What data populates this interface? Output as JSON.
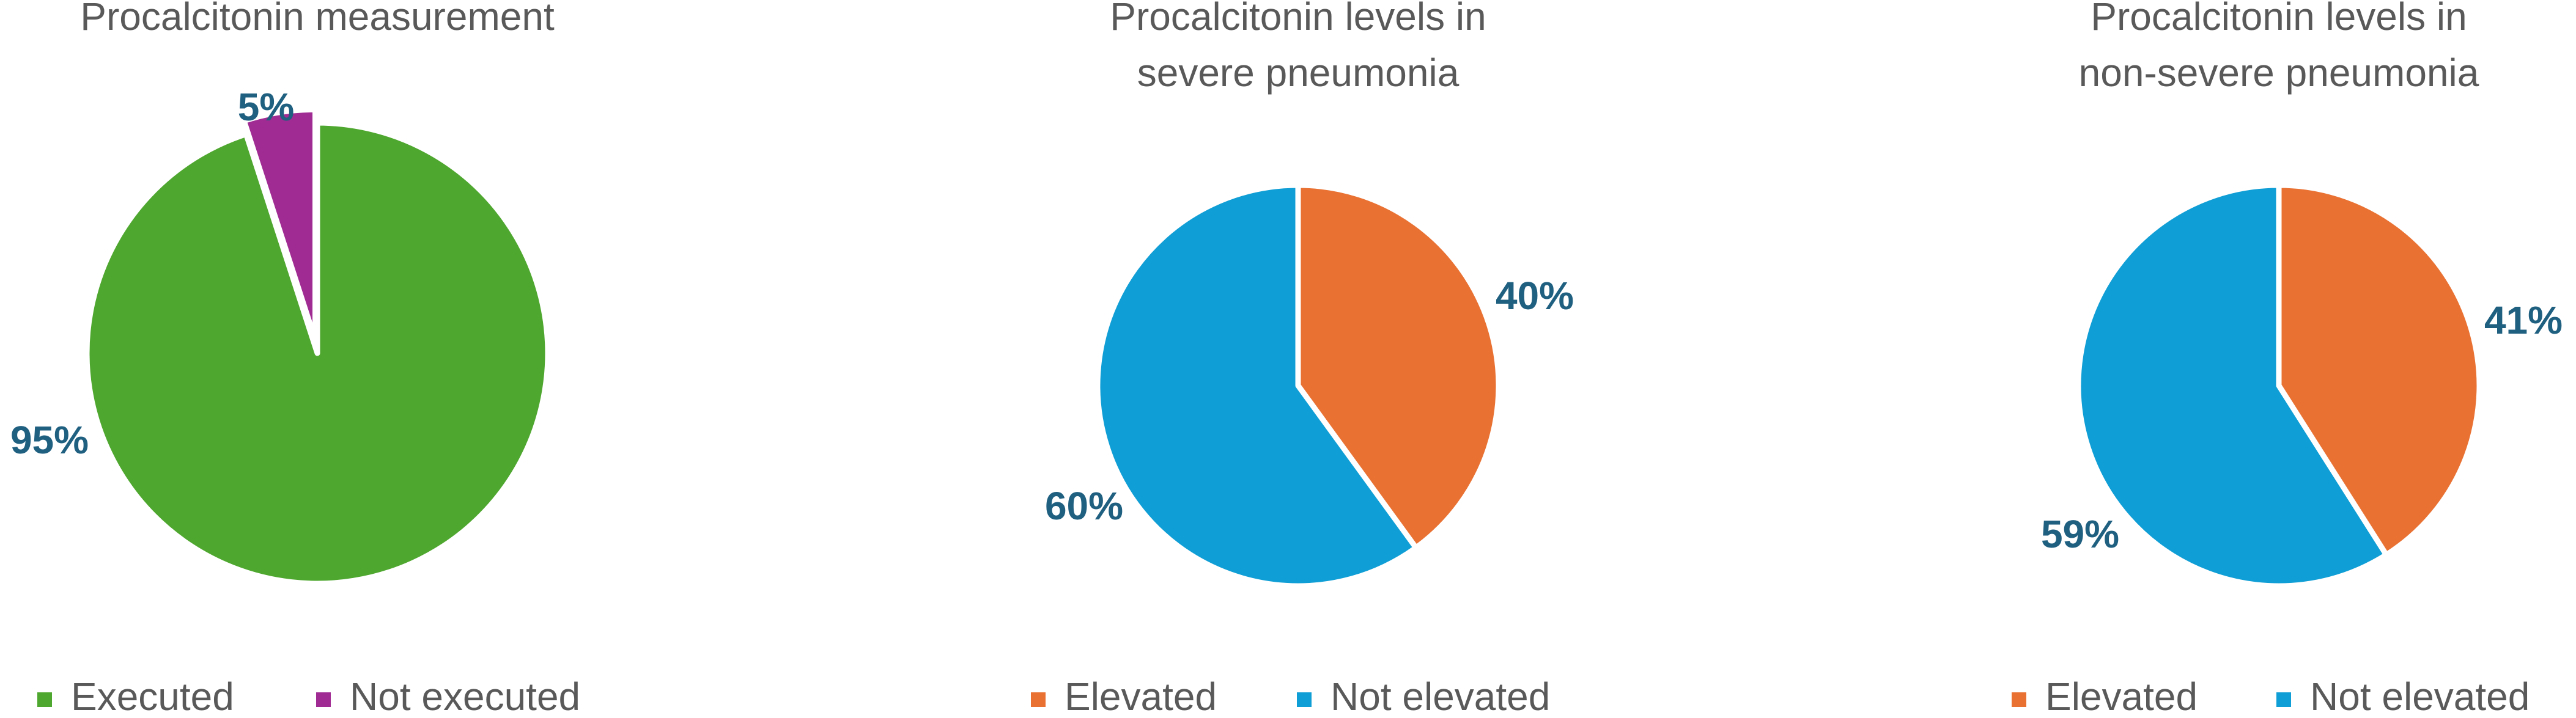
{
  "chart_data": [
    {
      "type": "pie",
      "title": [
        "Procalcitonin measurement"
      ],
      "categories": [
        "Executed",
        "Not executed"
      ],
      "values": [
        95,
        5
      ],
      "value_labels": [
        "95%",
        "5%"
      ],
      "colors": [
        "#4ea72e",
        "#a02b93"
      ],
      "legend": "bottom"
    },
    {
      "type": "pie",
      "title": [
        "Procalcitonin levels in",
        "severe pneumonia"
      ],
      "categories": [
        "Elevated",
        "Not elevated"
      ],
      "values": [
        40,
        60
      ],
      "value_labels": [
        "40%",
        "60%"
      ],
      "colors": [
        "#e97132",
        "#0f9ed5"
      ],
      "legend": "bottom"
    },
    {
      "type": "pie",
      "title": [
        "Procalcitonin levels in",
        "non-severe pneumonia"
      ],
      "categories": [
        "Elevated",
        "Not elevated"
      ],
      "values": [
        41,
        59
      ],
      "value_labels": [
        "41%",
        "59%"
      ],
      "colors": [
        "#e97132",
        "#0f9ed5"
      ],
      "legend": "bottom"
    }
  ]
}
